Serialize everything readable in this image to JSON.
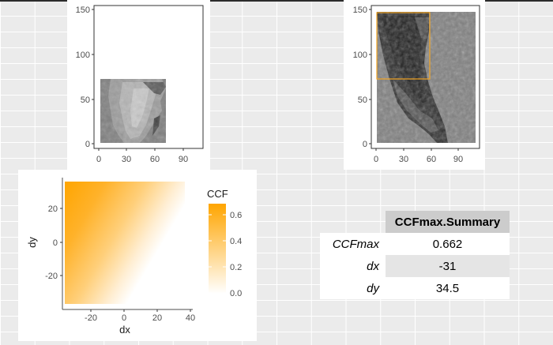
{
  "chart_data": [
    {
      "type": "heatmap",
      "id": "reference-image",
      "title": "",
      "xlabel": "",
      "ylabel": "",
      "xlim": [
        -5,
        110
      ],
      "ylim": [
        -5,
        152
      ],
      "xticks": [
        0,
        30,
        60,
        90
      ],
      "yticks": [
        0,
        50,
        100,
        150
      ],
      "image_extent": {
        "x": [
          0,
          70
        ],
        "y": [
          0,
          71
        ]
      },
      "colormap": "grayscale"
    },
    {
      "type": "heatmap",
      "id": "search-image",
      "title": "",
      "xlabel": "",
      "ylabel": "",
      "xlim": [
        -5,
        110
      ],
      "ylim": [
        -5,
        152
      ],
      "xticks": [
        0,
        30,
        60,
        90
      ],
      "yticks": [
        0,
        50,
        100,
        150
      ],
      "image_extent": {
        "x": [
          0,
          106
        ],
        "y": [
          0,
          145
        ]
      },
      "highlight_box": {
        "x": [
          0,
          58
        ],
        "y": [
          72,
          145
        ],
        "color": "#f5a623"
      },
      "colormap": "grayscale"
    },
    {
      "type": "heatmap",
      "id": "ccf-surface",
      "title": "",
      "xlabel": "dx",
      "ylabel": "dy",
      "xlim": [
        -38,
        40
      ],
      "ylim": [
        -38,
        38
      ],
      "xticks": [
        -20,
        0,
        20,
        40
      ],
      "yticks": [
        -20,
        0,
        20
      ],
      "image_extent": {
        "x": [
          -35,
          35
        ],
        "y": [
          -35,
          35
        ]
      },
      "legend": {
        "title": "CCF",
        "position": "right",
        "ticks": [
          "0.0",
          "0.2",
          "0.4",
          "0.6"
        ],
        "min": 0,
        "max": 0.7,
        "low_color": "#ffffff",
        "high_color": "#ffa500"
      },
      "peak": {
        "dx": -31,
        "dy": 34.5,
        "ccf": 0.662
      }
    }
  ],
  "summary": {
    "header": "CCFmax.Summary",
    "rows": [
      {
        "label": "CCFmax",
        "value": "0.662"
      },
      {
        "label": "dx",
        "value": "-31"
      },
      {
        "label": "dy",
        "value": "34.5"
      }
    ]
  }
}
